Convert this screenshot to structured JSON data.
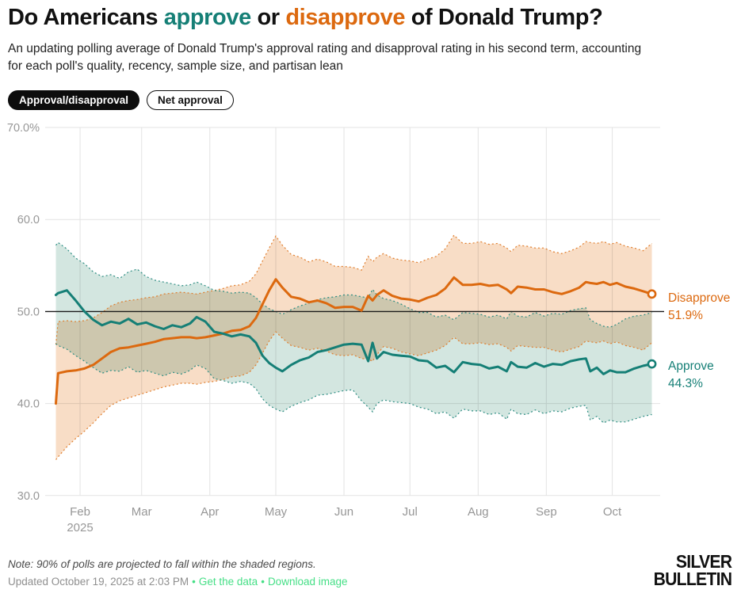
{
  "header": {
    "title": {
      "prefix": "Do Americans ",
      "approve_word": "approve",
      "middle": " or ",
      "disapprove_word": "disapprove",
      "suffix": " of Donald Trump?"
    },
    "subtitle_line1": "An updating polling average of Donald Trump's approval rating and disapproval rating in his second term, accounting",
    "subtitle_line2": "for each poll's quality, recency, sample size, and partisan lean"
  },
  "toggles": [
    {
      "label": "Approval/disapproval",
      "active": true
    },
    {
      "label": "Net approval",
      "active": false
    }
  ],
  "colors": {
    "approve_line": "#157F76",
    "disapprove_line": "#DC690F",
    "approve_band_fill": "#D3E6E0",
    "disapprove_band_fill": "#F8DDC6",
    "approve_band_edge": "#2E8D83",
    "disapprove_band_edge": "#E07E2E",
    "gridline": "#E3E3E3",
    "reference_line": "#1a1a1a",
    "axis_label": "#979797",
    "link_green": "#45DF86"
  },
  "chart_data": {
    "type": "line",
    "title": "Trump approval and disapproval polling average, second term",
    "x_axis": {
      "start_date": "2025-01-21",
      "end_date": "2025-10-19",
      "tick_labels": [
        "Feb",
        "Mar",
        "Apr",
        "May",
        "Jun",
        "Jul",
        "Aug",
        "Sep",
        "Oct"
      ],
      "tick_month_numbers": [
        2,
        3,
        4,
        5,
        6,
        7,
        8,
        9,
        10
      ],
      "year_label": "2025"
    },
    "y_axis": {
      "tick_labels": [
        "70.0%",
        "60.0",
        "50.0",
        "40.0",
        "30.0"
      ],
      "tick_values": [
        70,
        60,
        50,
        40,
        30
      ],
      "range": [
        30,
        70
      ],
      "reference_value": 50
    },
    "legend_position": "right-of-line-ends",
    "grid": true,
    "band_meaning": "90% of polls projected to fall within shaded regions",
    "dates": [
      "1-21",
      "1-22",
      "1-26",
      "1-30",
      "2-3",
      "2-7",
      "2-11",
      "2-15",
      "2-19",
      "2-23",
      "2-27",
      "3-3",
      "3-7",
      "3-11",
      "3-15",
      "3-19",
      "3-23",
      "3-26",
      "3-30",
      "4-3",
      "4-7",
      "4-11",
      "4-15",
      "4-19",
      "4-22",
      "4-25",
      "4-28",
      "5-1",
      "5-4",
      "5-8",
      "5-12",
      "5-16",
      "5-20",
      "5-24",
      "5-28",
      "6-1",
      "6-5",
      "6-9",
      "6-12",
      "6-14",
      "6-16",
      "6-19",
      "6-23",
      "6-27",
      "7-1",
      "7-5",
      "7-9",
      "7-13",
      "7-17",
      "7-21",
      "7-25",
      "7-29",
      "8-2",
      "8-6",
      "8-10",
      "8-14",
      "8-16",
      "8-19",
      "8-23",
      "8-27",
      "8-31",
      "9-4",
      "9-8",
      "9-12",
      "9-16",
      "9-19",
      "9-21",
      "9-24",
      "9-27",
      "9-30",
      "10-3",
      "10-7",
      "10-11",
      "10-15",
      "10-19"
    ],
    "series": [
      {
        "name": "Disapprove",
        "end_label": "Disapprove",
        "end_value": 51.9,
        "end_value_label": "51.9%",
        "values": [
          40.0,
          43.3,
          43.5,
          43.6,
          43.8,
          44.2,
          44.9,
          45.6,
          46.0,
          46.1,
          46.3,
          46.5,
          46.7,
          47.0,
          47.1,
          47.2,
          47.2,
          47.1,
          47.2,
          47.4,
          47.6,
          47.9,
          48.0,
          48.4,
          49.3,
          50.8,
          52.3,
          53.5,
          52.6,
          51.6,
          51.4,
          51.0,
          51.2,
          50.9,
          50.4,
          50.5,
          50.5,
          50.1,
          51.7,
          51.2,
          51.8,
          52.3,
          51.7,
          51.4,
          51.3,
          51.1,
          51.5,
          51.8,
          52.5,
          53.7,
          52.9,
          52.9,
          53.0,
          52.8,
          52.9,
          52.4,
          52.0,
          52.7,
          52.6,
          52.4,
          52.4,
          52.1,
          51.9,
          52.2,
          52.6,
          53.2,
          53.1,
          53.0,
          53.2,
          52.9,
          53.1,
          52.7,
          52.5,
          52.2,
          51.9
        ],
        "band_upper": [
          46.4,
          48.9,
          49.0,
          48.9,
          49.0,
          49.3,
          49.9,
          50.6,
          51.0,
          51.2,
          51.3,
          51.5,
          51.6,
          51.9,
          52.0,
          52.1,
          52.0,
          51.9,
          52.1,
          52.3,
          52.5,
          52.8,
          52.9,
          53.3,
          54.1,
          55.5,
          56.9,
          58.2,
          57.2,
          56.2,
          55.9,
          55.4,
          55.7,
          55.4,
          54.9,
          54.9,
          54.8,
          54.5,
          56.0,
          55.4,
          55.9,
          56.3,
          55.8,
          55.6,
          55.5,
          55.3,
          55.7,
          56.0,
          56.8,
          58.3,
          57.4,
          57.4,
          57.6,
          57.3,
          57.4,
          56.9,
          56.5,
          57.2,
          57.1,
          56.9,
          56.9,
          56.5,
          56.3,
          56.6,
          57.0,
          57.6,
          57.5,
          57.4,
          57.6,
          57.3,
          57.5,
          57.1,
          56.9,
          56.6,
          57.4
        ],
        "band_lower": [
          33.9,
          34.2,
          35.3,
          36.2,
          37.0,
          37.9,
          38.9,
          39.8,
          40.3,
          40.6,
          40.9,
          41.2,
          41.5,
          41.8,
          42.0,
          42.2,
          42.2,
          42.1,
          42.3,
          42.4,
          42.6,
          42.9,
          43.0,
          43.4,
          44.2,
          45.5,
          46.8,
          47.8,
          47.1,
          46.3,
          46.1,
          45.8,
          46.0,
          45.7,
          45.3,
          45.2,
          45.3,
          44.9,
          44.8,
          44.6,
          45.3,
          46.2,
          46.0,
          45.6,
          45.4,
          45.2,
          45.5,
          45.8,
          46.3,
          47.2,
          46.5,
          46.5,
          46.6,
          46.4,
          46.5,
          46.1,
          45.7,
          46.3,
          46.2,
          46.1,
          46.1,
          45.8,
          45.6,
          45.9,
          46.2,
          46.8,
          46.7,
          46.6,
          46.8,
          46.5,
          46.7,
          46.3,
          46.1,
          45.8,
          46.6
        ]
      },
      {
        "name": "Approve",
        "end_label": "Approve",
        "end_value": 44.3,
        "end_value_label": "44.3%",
        "values": [
          51.8,
          52.0,
          52.3,
          51.2,
          50.0,
          49.1,
          48.5,
          48.9,
          48.7,
          49.2,
          48.6,
          48.8,
          48.4,
          48.1,
          48.5,
          48.3,
          48.7,
          49.4,
          48.9,
          47.8,
          47.6,
          47.3,
          47.5,
          47.3,
          46.6,
          45.2,
          44.4,
          43.9,
          43.5,
          44.2,
          44.7,
          45.0,
          45.6,
          45.8,
          46.1,
          46.4,
          46.5,
          46.4,
          44.6,
          46.6,
          44.9,
          45.6,
          45.3,
          45.2,
          45.1,
          44.7,
          44.6,
          43.9,
          44.1,
          43.4,
          44.5,
          44.3,
          44.2,
          43.8,
          44.0,
          43.5,
          44.5,
          44.0,
          43.9,
          44.4,
          44.0,
          44.3,
          44.2,
          44.6,
          44.8,
          44.9,
          43.5,
          43.9,
          43.2,
          43.6,
          43.4,
          43.4,
          43.8,
          44.1,
          44.3
        ],
        "band_upper": [
          57.2,
          57.5,
          56.8,
          55.8,
          55.2,
          54.3,
          53.8,
          54.0,
          53.6,
          54.3,
          54.6,
          53.8,
          53.4,
          53.2,
          53.0,
          52.8,
          52.9,
          53.2,
          52.8,
          52.3,
          52.2,
          52.0,
          52.1,
          52.0,
          51.5,
          50.8,
          50.3,
          50.0,
          49.7,
          50.2,
          50.6,
          50.9,
          51.3,
          51.5,
          51.6,
          51.8,
          51.8,
          51.6,
          51.5,
          52.4,
          51.8,
          51.4,
          51.2,
          50.8,
          50.3,
          49.9,
          49.9,
          49.4,
          49.6,
          49.1,
          49.9,
          49.8,
          49.7,
          49.4,
          49.6,
          49.2,
          50.0,
          49.5,
          49.4,
          49.9,
          49.5,
          49.8,
          49.7,
          50.1,
          50.3,
          50.4,
          49.1,
          48.7,
          48.4,
          48.3,
          48.6,
          49.2,
          49.5,
          49.6,
          49.9
        ],
        "band_lower": [
          46.5,
          46.3,
          45.9,
          45.2,
          44.6,
          43.9,
          43.3,
          43.6,
          43.5,
          44.0,
          43.4,
          43.6,
          43.3,
          43.0,
          43.4,
          43.2,
          43.6,
          44.2,
          43.8,
          42.7,
          42.5,
          42.2,
          42.4,
          42.2,
          41.6,
          40.5,
          39.8,
          39.4,
          39.1,
          39.7,
          40.1,
          40.4,
          40.9,
          41.0,
          41.2,
          41.4,
          41.5,
          40.3,
          39.6,
          39.1,
          40.0,
          40.4,
          40.2,
          40.1,
          40.0,
          39.6,
          39.4,
          38.9,
          39.1,
          38.4,
          39.4,
          39.2,
          39.2,
          38.8,
          39.0,
          38.3,
          39.4,
          38.9,
          38.8,
          39.3,
          38.9,
          39.2,
          39.1,
          39.5,
          39.7,
          39.8,
          38.2,
          38.6,
          37.9,
          38.2,
          38.0,
          38.0,
          38.3,
          38.6,
          38.8
        ]
      }
    ]
  },
  "footer": {
    "note": "Note: 90% of polls are projected to fall within the shaded regions.",
    "updated_text": "Updated October 19, 2025 at 2:03 PM",
    "separator": "•",
    "links": [
      {
        "label": "Get the data"
      },
      {
        "label": "Download image"
      }
    ]
  },
  "logo": {
    "line1": "SILVER",
    "line2": "BULLETIN"
  }
}
